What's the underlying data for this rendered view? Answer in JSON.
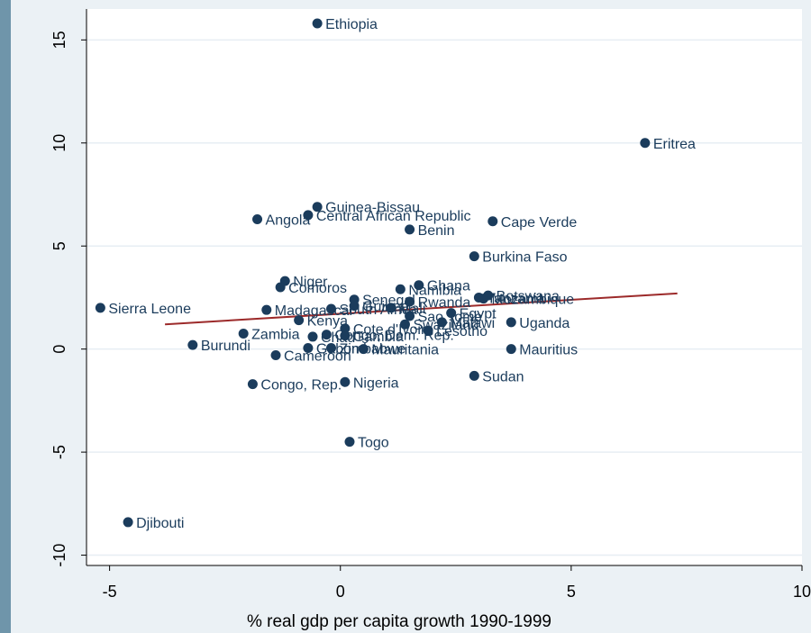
{
  "chart_data": {
    "type": "scatter",
    "title": "",
    "xlabel": "% real gdp per capita growth 1990-1999",
    "ylabel": "",
    "xlim": [
      -5.5,
      10
    ],
    "ylim": [
      -10.5,
      16.5
    ],
    "xticks": [
      -5,
      0,
      5,
      10
    ],
    "yticks": [
      -10,
      -5,
      0,
      5,
      10,
      15
    ],
    "grid": "horizontal",
    "legend": "none",
    "colors": {
      "points": "#1b3c5c",
      "fit_line": "#9c2a2a",
      "grid": "#ffffff",
      "plot_bg": "#ffffff",
      "frame_bg": "#ebf1f5"
    },
    "fit_line": {
      "x": [
        -3.8,
        7.3
      ],
      "y": [
        1.2,
        2.7
      ]
    },
    "points": [
      {
        "label": "Ethiopia",
        "x": -0.5,
        "y": 15.8
      },
      {
        "label": "Eritrea",
        "x": 6.6,
        "y": 10.0
      },
      {
        "label": "Guinea-Bissau",
        "x": -0.5,
        "y": 6.9
      },
      {
        "label": "Central African Republic",
        "x": -0.7,
        "y": 6.5
      },
      {
        "label": "Angola",
        "x": -1.8,
        "y": 6.3
      },
      {
        "label": "Cape Verde",
        "x": 3.3,
        "y": 6.2
      },
      {
        "label": "Benin",
        "x": 1.5,
        "y": 5.8
      },
      {
        "label": "Burkina Faso",
        "x": 2.9,
        "y": 4.5
      },
      {
        "label": "Niger",
        "x": -1.2,
        "y": 3.3
      },
      {
        "label": "Comoros",
        "x": -1.3,
        "y": 3.0
      },
      {
        "label": "Ghana",
        "x": 1.7,
        "y": 3.1
      },
      {
        "label": "Namibia",
        "x": 1.3,
        "y": 2.9
      },
      {
        "label": "Botswana",
        "x": 3.2,
        "y": 2.6
      },
      {
        "label": "Tanzania",
        "x": 3.0,
        "y": 2.5
      },
      {
        "label": "Mozambique",
        "x": 3.1,
        "y": 2.45
      },
      {
        "label": "Senegal",
        "x": 0.3,
        "y": 2.4
      },
      {
        "label": "Rwanda",
        "x": 1.5,
        "y": 2.3
      },
      {
        "label": "Sierra Leone",
        "x": -5.2,
        "y": 2.0
      },
      {
        "label": "Guinea",
        "x": 0.3,
        "y": 2.1
      },
      {
        "label": "Mali",
        "x": 1.1,
        "y": 2.0
      },
      {
        "label": "Madagascar",
        "x": -1.6,
        "y": 1.9
      },
      {
        "label": "South Africa",
        "x": -0.2,
        "y": 1.95
      },
      {
        "label": "Egypt",
        "x": 2.4,
        "y": 1.75
      },
      {
        "label": "Sao Tome",
        "x": 1.5,
        "y": 1.6
      },
      {
        "label": "Kenya",
        "x": -0.9,
        "y": 1.4
      },
      {
        "label": "Malawi",
        "x": 2.2,
        "y": 1.3
      },
      {
        "label": "Uganda",
        "x": 3.7,
        "y": 1.3
      },
      {
        "label": "Swaziland",
        "x": 1.4,
        "y": 1.2
      },
      {
        "label": "Cote d'Ivoire",
        "x": 0.1,
        "y": 1.0
      },
      {
        "label": "Lesotho",
        "x": 1.9,
        "y": 0.9
      },
      {
        "label": "Zambia",
        "x": -2.1,
        "y": 0.75
      },
      {
        "label": "Congo, Dem. Rep.",
        "x": -0.3,
        "y": 0.7
      },
      {
        "label": "Chad",
        "x": -0.6,
        "y": 0.6
      },
      {
        "label": "Gambia",
        "x": 0.1,
        "y": 0.65
      },
      {
        "label": "Burundi",
        "x": -3.2,
        "y": 0.2
      },
      {
        "label": "Gabon",
        "x": -0.7,
        "y": 0.05
      },
      {
        "label": "Zimbabwe",
        "x": -0.2,
        "y": 0.05
      },
      {
        "label": "Mauritania",
        "x": 0.5,
        "y": 0.0
      },
      {
        "label": "Mauritius",
        "x": 3.7,
        "y": 0.0
      },
      {
        "label": "Cameroon",
        "x": -1.4,
        "y": -0.3
      },
      {
        "label": "Sudan",
        "x": 2.9,
        "y": -1.3
      },
      {
        "label": "Nigeria",
        "x": 0.1,
        "y": -1.6
      },
      {
        "label": "Congo, Rep.",
        "x": -1.9,
        "y": -1.7
      },
      {
        "label": "Togo",
        "x": 0.2,
        "y": -4.5
      },
      {
        "label": "Djibouti",
        "x": -4.6,
        "y": -8.4
      }
    ]
  }
}
